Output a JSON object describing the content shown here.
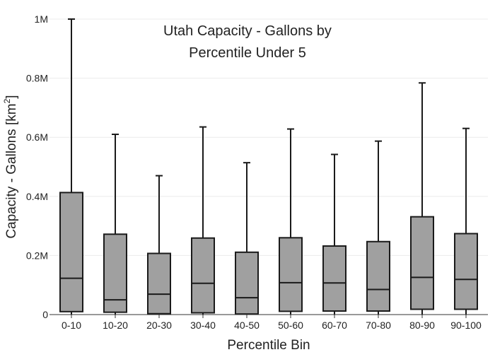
{
  "chart_data": {
    "type": "box",
    "title_lines": [
      "Utah Capacity - Gallons by",
      "Percentile Under 5"
    ],
    "xlabel": "Percentile Bin",
    "ylabel": "Capacity - Gallons  [km",
    "ylabel_superscript": "2",
    "ylabel_suffix": "]",
    "ylim": [
      0,
      1000000
    ],
    "yticks": [
      {
        "value": 0,
        "label": "0"
      },
      {
        "value": 200000,
        "label": "0.2M"
      },
      {
        "value": 400000,
        "label": "0.4M"
      },
      {
        "value": 600000,
        "label": "0.6M"
      },
      {
        "value": 800000,
        "label": "0.8M"
      },
      {
        "value": 1000000,
        "label": "1M"
      }
    ],
    "grid": true,
    "box_fill": "#a0a0a0",
    "box_stroke": "#1a1a1a",
    "categories": [
      "0-10",
      "10-20",
      "20-30",
      "30-40",
      "40-50",
      "50-60",
      "60-70",
      "70-80",
      "80-90",
      "90-100"
    ],
    "boxes": [
      {
        "min": 0,
        "q1": 10000,
        "median": 123000,
        "q3": 413000,
        "max": 1000000
      },
      {
        "min": 0,
        "q1": 8000,
        "median": 50000,
        "q3": 272000,
        "max": 610000
      },
      {
        "min": 0,
        "q1": 3000,
        "median": 69000,
        "q3": 207000,
        "max": 470000
      },
      {
        "min": 0,
        "q1": 6000,
        "median": 106000,
        "q3": 259000,
        "max": 635000
      },
      {
        "min": 0,
        "q1": 2000,
        "median": 57000,
        "q3": 211000,
        "max": 514000
      },
      {
        "min": 0,
        "q1": 11000,
        "median": 108000,
        "q3": 260000,
        "max": 628000
      },
      {
        "min": 0,
        "q1": 12000,
        "median": 107000,
        "q3": 232000,
        "max": 542000
      },
      {
        "min": 0,
        "q1": 12000,
        "median": 85000,
        "q3": 247000,
        "max": 587000
      },
      {
        "min": 0,
        "q1": 18000,
        "median": 126000,
        "q3": 331000,
        "max": 784000
      },
      {
        "min": 0,
        "q1": 18000,
        "median": 119000,
        "q3": 274000,
        "max": 630000
      }
    ]
  }
}
